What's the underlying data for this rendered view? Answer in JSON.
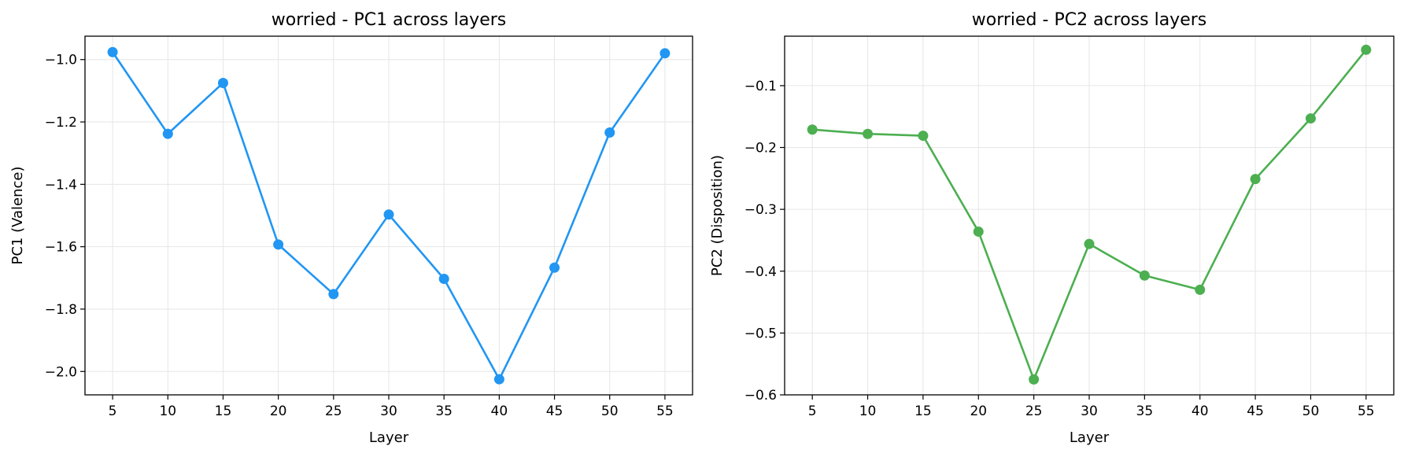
{
  "chart_data": [
    {
      "type": "line",
      "title": "worried - PC1 across layers",
      "xlabel": "Layer",
      "ylabel": "PC1 (Valence)",
      "x": [
        5,
        10,
        15,
        20,
        25,
        30,
        35,
        40,
        45,
        50,
        55
      ],
      "xticks": [
        "5",
        "10",
        "15",
        "20",
        "25",
        "30",
        "35",
        "40",
        "45",
        "50",
        "55"
      ],
      "yticks": [
        -1.0,
        -1.2,
        -1.4,
        -1.6,
        -1.8,
        -2.0
      ],
      "ytick_labels": [
        "−1.0",
        "−1.2",
        "−1.4",
        "−1.6",
        "−1.8",
        "−2.0"
      ],
      "xlim": [
        2.5,
        57.5
      ],
      "ylim": [
        -2.075,
        -0.925
      ],
      "grid": true,
      "series": [
        {
          "color": "#2196F3",
          "marker": "circle",
          "values": [
            -0.976,
            -1.238,
            -1.075,
            -1.593,
            -1.752,
            -1.497,
            -1.703,
            -2.025,
            -1.667,
            -1.234,
            -0.98
          ]
        }
      ]
    },
    {
      "type": "line",
      "title": "worried - PC2 across layers",
      "xlabel": "Layer",
      "ylabel": "PC2 (Disposition)",
      "x": [
        5,
        10,
        15,
        20,
        25,
        30,
        35,
        40,
        45,
        50,
        55
      ],
      "xticks": [
        "5",
        "10",
        "15",
        "20",
        "25",
        "30",
        "35",
        "40",
        "45",
        "50",
        "55"
      ],
      "yticks": [
        -0.1,
        -0.2,
        -0.3,
        -0.4,
        -0.5,
        -0.6
      ],
      "ytick_labels": [
        "−0.1",
        "−0.2",
        "−0.3",
        "−0.4",
        "−0.5",
        "−0.6"
      ],
      "xlim": [
        2.5,
        57.5
      ],
      "ylim": [
        -0.6,
        -0.02
      ],
      "grid": true,
      "series": [
        {
          "color": "#4CAF50",
          "marker": "circle",
          "values": [
            -0.171,
            -0.178,
            -0.181,
            -0.336,
            -0.575,
            -0.356,
            -0.407,
            -0.43,
            -0.251,
            -0.153,
            -0.042
          ]
        }
      ]
    }
  ]
}
